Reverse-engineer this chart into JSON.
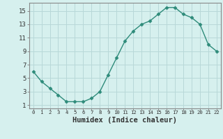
{
  "x": [
    0,
    1,
    2,
    3,
    4,
    5,
    6,
    7,
    8,
    9,
    10,
    11,
    12,
    13,
    14,
    15,
    16,
    17,
    18,
    19,
    20,
    21,
    22
  ],
  "y": [
    6.0,
    4.5,
    3.5,
    2.5,
    1.5,
    1.5,
    1.5,
    2.0,
    3.0,
    5.5,
    8.0,
    10.5,
    12.0,
    13.0,
    13.5,
    14.5,
    15.5,
    15.5,
    14.5,
    14.0,
    13.0,
    10.0,
    9.0
  ],
  "line_color": "#2e8b7a",
  "marker": "D",
  "marker_size": 2.5,
  "bg_color": "#d6f0ee",
  "grid_color": "#b8d8d8",
  "xlabel": "Humidex (Indice chaleur)",
  "xlabel_fontsize": 7.5,
  "ytick_labels": [
    "1",
    "3",
    "5",
    "7",
    "9",
    "11",
    "13",
    "15"
  ],
  "ytick_values": [
    1,
    3,
    5,
    7,
    9,
    11,
    13,
    15
  ],
  "xtick_labels": [
    "0",
    "1",
    "2",
    "3",
    "4",
    "5",
    "6",
    "7",
    "8",
    "9",
    "10",
    "11",
    "12",
    "13",
    "14",
    "15",
    "16",
    "17",
    "18",
    "19",
    "20",
    "21",
    "22"
  ],
  "ylim": [
    0.5,
    16.2
  ],
  "xlim": [
    -0.5,
    22.5
  ]
}
